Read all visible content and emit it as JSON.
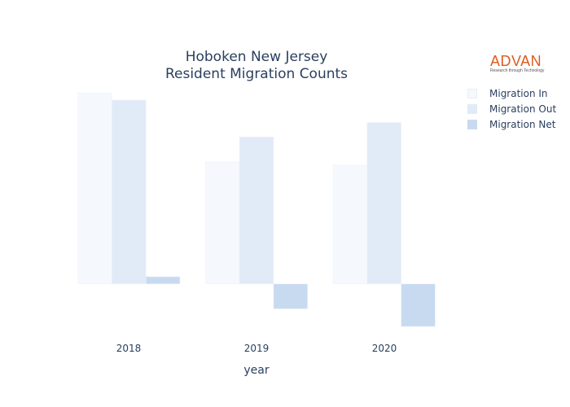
{
  "chart_data": {
    "type": "bar",
    "title_line1": "Hoboken New Jersey",
    "title_line2": "Resident Migration Counts",
    "xlabel": "year",
    "ylabel": "",
    "categories": [
      "2018",
      "2019",
      "2020"
    ],
    "series": [
      {
        "name": "Migration In",
        "values": [
          2380,
          1520,
          1480
        ],
        "color": "#f5f9fd"
      },
      {
        "name": "Migration Out",
        "values": [
          2290,
          1830,
          2010
        ],
        "color": "#e1ebf7"
      },
      {
        "name": "Migration Net",
        "values": [
          90,
          -310,
          -530
        ],
        "color": "#c8daf0"
      }
    ],
    "ylim": [
      -580,
      2400
    ],
    "grid": false,
    "legend": "right"
  },
  "logo": {
    "name": "ADVAN",
    "tagline": "Research through Technology"
  }
}
